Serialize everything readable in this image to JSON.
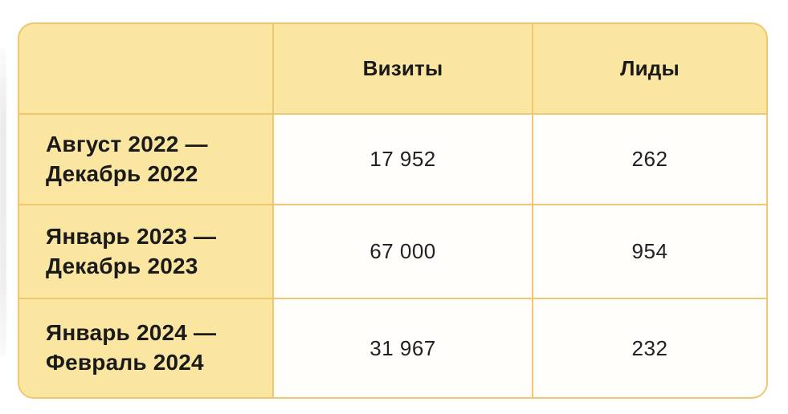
{
  "chart_data": {
    "type": "table",
    "title": "",
    "columns": [
      "",
      "Визиты",
      "Лиды"
    ],
    "rows": [
      [
        "Август 2022 — Декабрь 2022",
        "17 952",
        "262"
      ],
      [
        "Январь 2023 — Декабрь 2023",
        "67 000",
        "954"
      ],
      [
        "Январь 2024 — Февраль 2024",
        "31 967",
        "232"
      ]
    ],
    "series": [
      {
        "name": "Визиты",
        "values": [
          17952,
          67000,
          31967
        ]
      },
      {
        "name": "Лиды",
        "values": [
          262,
          954,
          232
        ]
      }
    ],
    "categories": [
      "Август 2022 — Декабрь 2022",
      "Январь 2023 — Декабрь 2023",
      "Январь 2024 — Февраль 2024"
    ]
  },
  "table": {
    "headers": {
      "visits": "Визиты",
      "leads": "Лиды"
    },
    "rows": [
      {
        "period": "Август 2022 —\nДекабрь 2022",
        "visits": "17 952",
        "leads": "262"
      },
      {
        "period": "Январь 2023 —\nДекабрь 2023",
        "visits": "67 000",
        "leads": "954"
      },
      {
        "period": "Январь 2024 —\nФевраль 2024",
        "visits": "31 967",
        "leads": "232"
      }
    ],
    "colors": {
      "cell_yellow": "#fae6a1",
      "border_gold": "#efc770",
      "cell_white": "#fffefb",
      "text": "#1a1a1a"
    }
  }
}
